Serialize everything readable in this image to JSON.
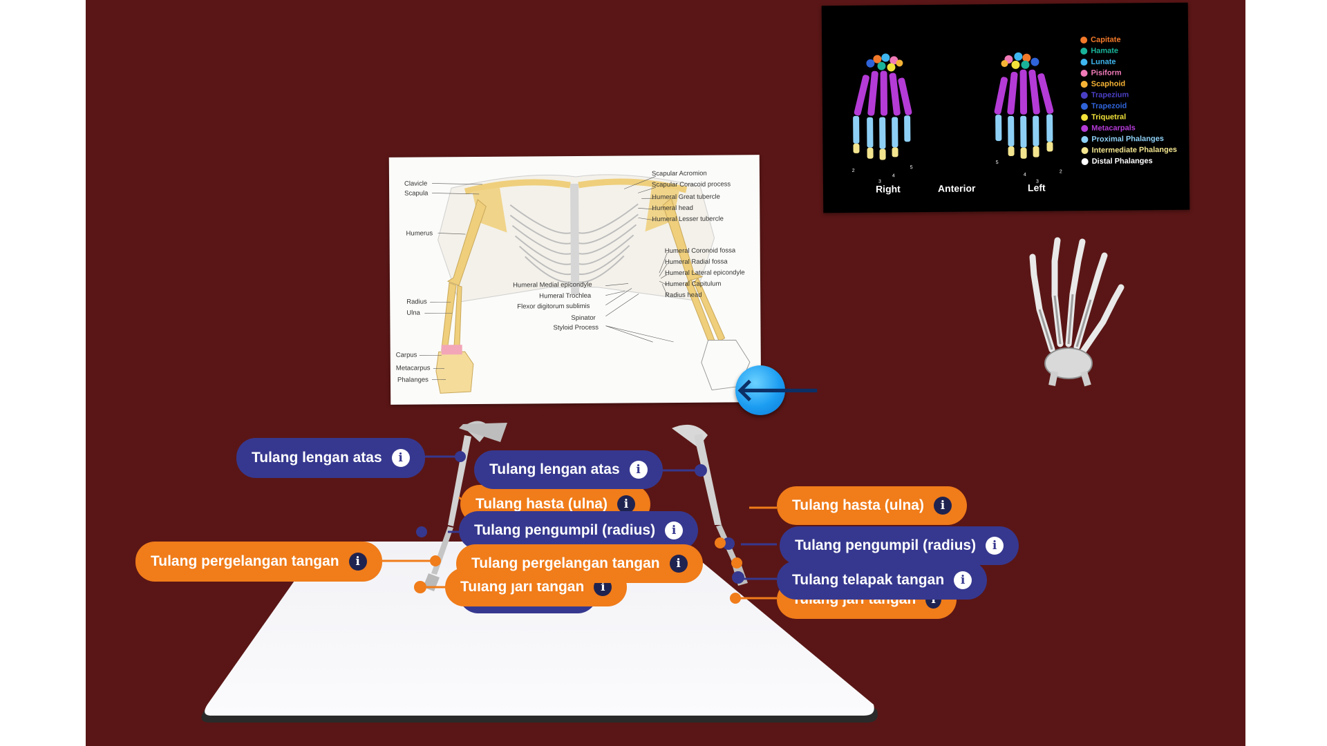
{
  "poster": {
    "labels_left": [
      "Clavicle",
      "Scapula",
      "Humerus",
      "Radius",
      "Ulna",
      "Carpus",
      "Metacarpus",
      "Phalanges"
    ],
    "labels_right_top": [
      "Scapular Acromion",
      "Scapular Coracoid process",
      "Humeral Great tubercle",
      "Humeral head",
      "Humeral Lesser tubercle"
    ],
    "labels_right_mid": [
      "Humeral Coronoid fossa",
      "Humeral Radial fossa",
      "Humeral Lateral epicondyle",
      "Humeral Capitulum",
      "Radius head"
    ],
    "labels_center": [
      "Humeral Medial epicondyle",
      "Humeral Trochlea",
      "Flexor digitorum sublimis",
      "Spinator",
      "Styloid Process"
    ]
  },
  "hand_chart": {
    "captions": [
      "Right",
      "Anterior",
      "Left"
    ],
    "numbers_right": [
      "2",
      "3",
      "4",
      "5"
    ],
    "numbers_left": [
      "5",
      "4",
      "3",
      "2"
    ],
    "legend": [
      {
        "label": "Capitate",
        "color": "#f2792a"
      },
      {
        "label": "Hamate",
        "color": "#19b39a"
      },
      {
        "label": "Lunate",
        "color": "#3fb6ef"
      },
      {
        "label": "Pisiform",
        "color": "#f07ab8"
      },
      {
        "label": "Scaphoid",
        "color": "#f5b335"
      },
      {
        "label": "Trapezium",
        "color": "#4a3fc4"
      },
      {
        "label": "Trapezoid",
        "color": "#2f63d9"
      },
      {
        "label": "Triquetral",
        "color": "#f2e23a"
      },
      {
        "label": "Metacarpals",
        "color": "#b43bd6"
      },
      {
        "label": "Proximal Phalanges",
        "color": "#8ed0f5"
      },
      {
        "label": "Intermediate Phalanges",
        "color": "#f3e58f"
      },
      {
        "label": "Distal Phalanges",
        "color": "#ffffff"
      }
    ]
  },
  "colors": {
    "background": "#5a1616",
    "blue_tag": "#36388f",
    "orange_tag": "#f07c1a",
    "back_button": "#1c9df2"
  },
  "back_button": {
    "icon": "arrow-left-icon",
    "glyph": "🡐"
  },
  "info_glyph": "i",
  "tags": {
    "left_humerus": "Tulang lengan atas",
    "mid_humerus": "Tulang lengan atas",
    "mid_ulna": "Tulang hasta (ulna)",
    "mid_radius": "Tulang pengumpil (radius)",
    "left_carpus": "Tulang pergelangan tangan",
    "mid_carpus": "Tulang pergelangan tangan",
    "mid_phalanges": "Tulang jari tangan",
    "right_ulna": "Tulang hasta (ulna)",
    "right_radius": "Tulang pengumpil (radius)",
    "right_metacarpus": "Tulang telapak tangan",
    "right_phalanges": "Tulang jari tangan"
  }
}
